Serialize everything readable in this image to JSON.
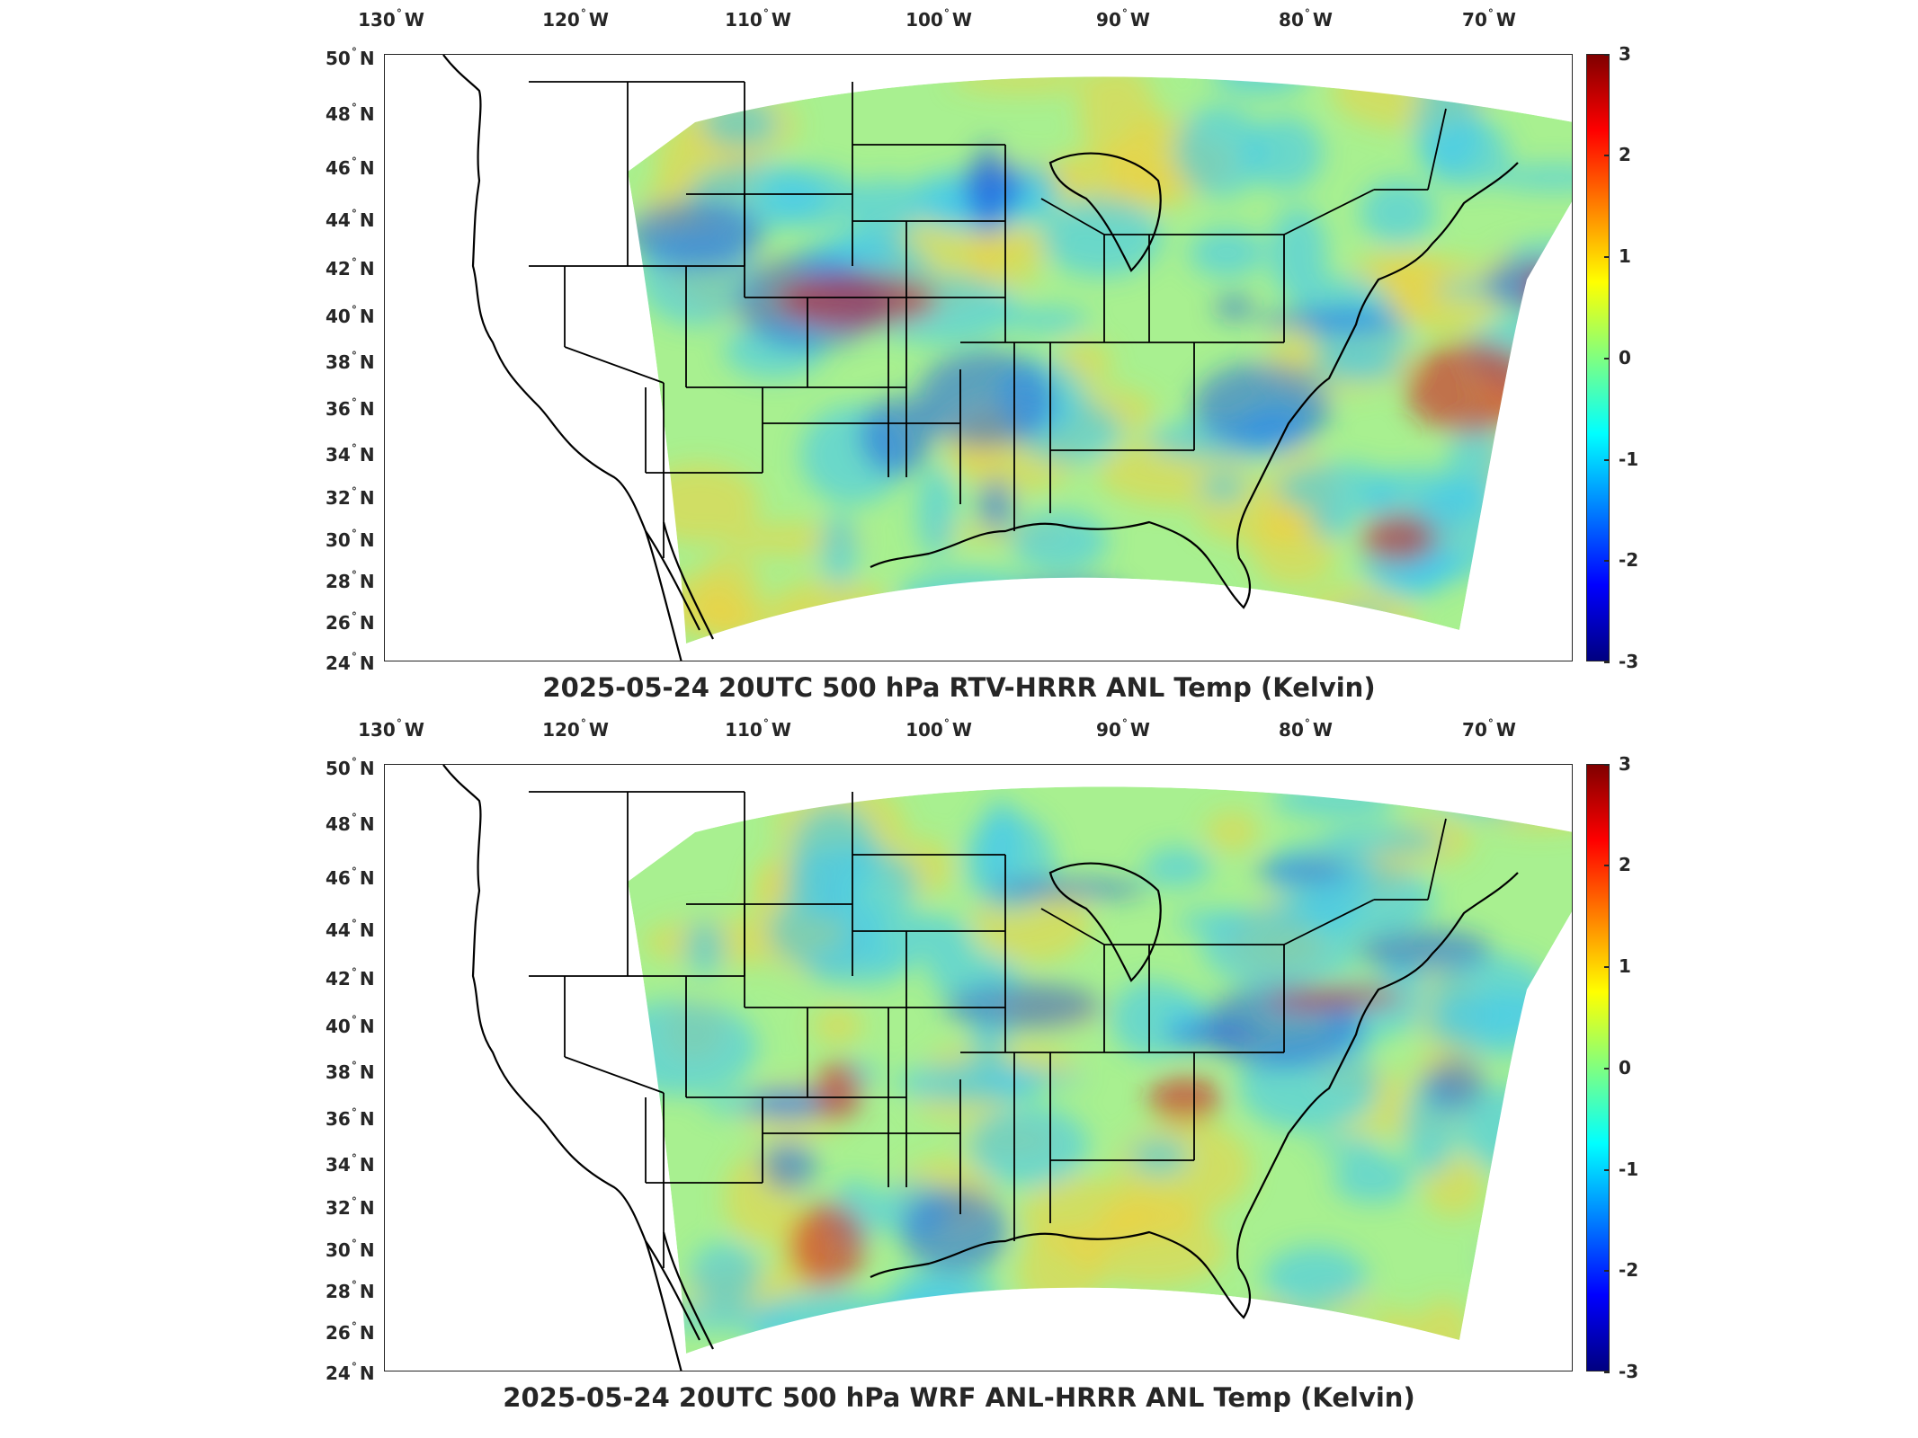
{
  "panels": [
    {
      "title": "2025-05-24 20UTC 500 hPa RTV-HRRR ANL Temp (Kelvin)",
      "field": "RTV-HRRR ANL minus HRRR ANL"
    },
    {
      "title": "2025-05-24 20UTC 500 hPa WRF ANL-HRRR ANL Temp (Kelvin)",
      "field": "WRF ANL minus HRRR ANL"
    }
  ],
  "lon_labels": [
    "130",
    "120",
    "110",
    "100",
    "90",
    "80",
    "70"
  ],
  "lon_suffix": "W",
  "lat_labels": [
    "50",
    "48",
    "46",
    "44",
    "42",
    "40",
    "38",
    "36",
    "34",
    "32",
    "30",
    "28",
    "26",
    "24"
  ],
  "lat_suffix": "N",
  "degree_symbol": "°",
  "colorbar": {
    "ticks": [
      "3",
      "2",
      "1",
      "0",
      "-1",
      "-2",
      "-3"
    ],
    "min": -3,
    "max": 3,
    "colormap": "jet",
    "colors": [
      "#000080",
      "#0000ff",
      "#0080ff",
      "#00ffff",
      "#80ff80",
      "#ffff00",
      "#ff8000",
      "#ff0000",
      "#800000"
    ]
  },
  "map": {
    "projection": "lambert-conformal",
    "lon_range": [
      -130,
      -63
    ],
    "lat_range": [
      24,
      50
    ],
    "coastline_color": "#000000",
    "field_colors": {
      "background": "#a8f090",
      "warm": "#f0d040",
      "hot": "#d02020",
      "cool": "#40c8f0",
      "cold": "#2060e0"
    }
  }
}
